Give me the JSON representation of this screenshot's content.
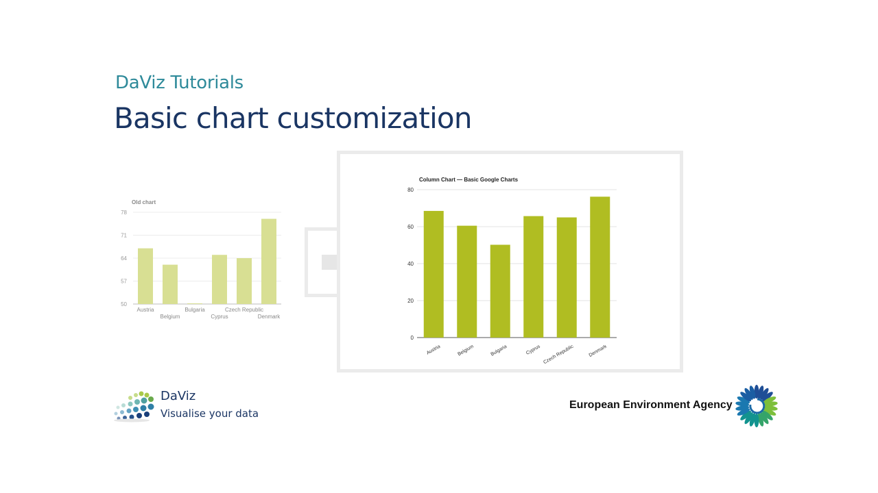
{
  "slide": {
    "subtitle": "DaViz Tutorials",
    "title": "Basic chart customization"
  },
  "footer": {
    "daviz_name": "DaViz",
    "daviz_tagline": "Visualise your data",
    "eea_name": "European Environment Agency"
  },
  "icons": {
    "arrow": "arrow-right-icon",
    "daviz_logo": "daviz-dots-logo",
    "eea_logo": "eea-sunflower-logo"
  },
  "colors": {
    "title": "#1a3563",
    "subtitle": "#2e8a9a",
    "old_bar": "#d8df93",
    "new_bar": "#b0bd22"
  },
  "chart_data": [
    {
      "type": "bar",
      "title": "Old chart",
      "categories": [
        "Austria",
        "Belgium",
        "Bulgaria",
        "Cyprus",
        "Czech Republic",
        "Denmark"
      ],
      "values": [
        67,
        62,
        50.2,
        65,
        64,
        76
      ],
      "ylim": [
        50,
        78
      ],
      "yticks": [
        50,
        57,
        64,
        71,
        78
      ],
      "grid": true
    },
    {
      "type": "bar",
      "title": "Column Chart — Basic Google Charts",
      "categories": [
        "Austria",
        "Belgium",
        "Bulgaria",
        "Cyprus",
        "Czech Republic",
        "Denmark"
      ],
      "values": [
        68.5,
        60.5,
        50.2,
        65.7,
        65,
        76.2
      ],
      "ylim": [
        0,
        80
      ],
      "yticks": [
        0,
        20,
        40,
        60,
        80
      ],
      "grid": true
    }
  ]
}
